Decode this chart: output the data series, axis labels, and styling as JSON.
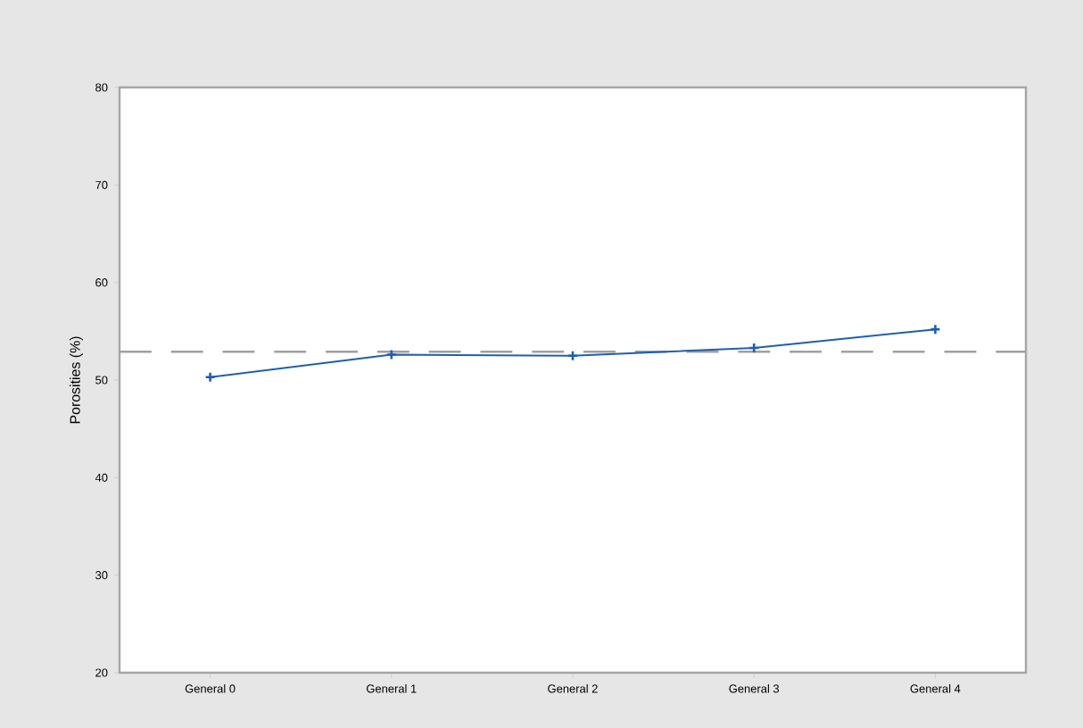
{
  "chart_data": {
    "type": "line",
    "ylabel": "Porosities (%)",
    "categories": [
      "General 0",
      "General 1",
      "General 2",
      "General 3",
      "General 4"
    ],
    "series": [
      {
        "color": "#1f5fb0",
        "values": [
          50.3,
          52.6,
          52.5,
          53.3,
          55.2
        ]
      }
    ],
    "ylim": [
      20,
      80
    ],
    "yticks": [
      20,
      30,
      40,
      50,
      60,
      70,
      80
    ],
    "ref_lines": [
      {
        "axis": "y",
        "value": 52.9,
        "color": "#a0a0a0",
        "line_style": "dashed"
      }
    ],
    "marker": "cross",
    "line_style": "solid",
    "grid": false
  }
}
